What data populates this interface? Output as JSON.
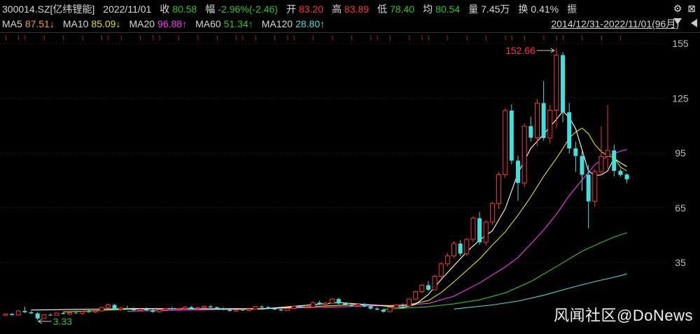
{
  "header": {
    "symbol": "300014.SZ[亿纬锂能]",
    "date": "2022/11/01",
    "close_label": "收",
    "close": "80.58",
    "change_label": "幅",
    "change": "-2.96%(-2.46)",
    "open_label": "开",
    "open": "83.20",
    "high_label": "高",
    "high": "83.89",
    "low_label": "低",
    "low": "78.40",
    "avg_label": "均",
    "avg": "80.54",
    "volume_label": "量",
    "volume": "7.45万",
    "turnover_label": "换",
    "turnover": "0.41%",
    "amp_label": "振",
    "settings_icon": "gear-icon",
    "close_icon": "close-icon"
  },
  "ma_bar": {
    "ma5_label": "MA5",
    "ma5": "87.51↓",
    "ma10_label": "MA10",
    "ma10": "85.09↓",
    "ma20_label": "MA20",
    "ma20": "96.88↑",
    "ma60_label": "MA60",
    "ma60": "51.34↑",
    "ma120_label": "MA120",
    "ma120": "28.80↑",
    "range": "2014/12/31-2022/11/01(96月)"
  },
  "colors": {
    "up": "#ff3333",
    "down": "#40e0e0",
    "ma5": "#ffffff",
    "ma10": "#e8e000",
    "ma20": "#ff33ff",
    "ma60": "#28c828",
    "ma120": "#40e0e0"
  },
  "chart_data": {
    "type": "candlestick",
    "period": "monthly",
    "ylim": [
      20,
      160
    ],
    "yticks": [
      35,
      65,
      95,
      125,
      155
    ],
    "max_label": "152.66",
    "min_label": "3.33",
    "candles": [
      [
        6.2,
        7.1,
        5.8,
        6.9
      ],
      [
        6.9,
        7.3,
        6.0,
        6.3
      ],
      [
        6.3,
        9.0,
        6.0,
        8.5
      ],
      [
        8.5,
        10.8,
        7.4,
        7.8
      ],
      [
        7.8,
        8.6,
        6.8,
        7.2
      ],
      [
        7.2,
        8.0,
        3.33,
        4.4
      ],
      [
        4.4,
        6.8,
        4.2,
        6.4
      ],
      [
        6.4,
        7.2,
        5.9,
        6.2
      ],
      [
        6.2,
        7.6,
        6.0,
        7.4
      ],
      [
        7.4,
        8.0,
        6.6,
        6.9
      ],
      [
        6.9,
        7.8,
        6.4,
        7.6
      ],
      [
        7.6,
        8.4,
        7.0,
        7.3
      ],
      [
        7.3,
        8.6,
        6.2,
        8.2
      ],
      [
        8.2,
        9.6,
        7.6,
        7.9
      ],
      [
        7.9,
        8.8,
        7.3,
        8.5
      ],
      [
        8.5,
        10.8,
        8.1,
        10.4
      ],
      [
        10.4,
        12.6,
        9.8,
        11.8
      ],
      [
        11.8,
        12.4,
        8.8,
        9.4
      ],
      [
        9.4,
        10.6,
        8.6,
        10.1
      ],
      [
        10.1,
        11.4,
        9.2,
        9.6
      ],
      [
        9.6,
        10.4,
        8.5,
        8.9
      ],
      [
        8.9,
        9.8,
        8.4,
        9.5
      ],
      [
        9.5,
        10.4,
        8.7,
        8.9
      ],
      [
        8.9,
        9.4,
        7.6,
        8.0
      ],
      [
        8.0,
        9.6,
        7.8,
        9.2
      ],
      [
        9.2,
        10.2,
        8.7,
        9.9
      ],
      [
        9.9,
        10.9,
        9.1,
        9.4
      ],
      [
        9.4,
        10.1,
        8.6,
        9.8
      ],
      [
        9.8,
        11.0,
        9.4,
        10.6
      ],
      [
        10.6,
        11.2,
        9.4,
        9.8
      ],
      [
        9.8,
        10.6,
        9.0,
        10.2
      ],
      [
        10.2,
        11.4,
        9.8,
        11.0
      ],
      [
        11.0,
        11.8,
        10.2,
        10.5
      ],
      [
        10.5,
        11.0,
        9.4,
        9.7
      ],
      [
        9.7,
        10.4,
        8.8,
        9.1
      ],
      [
        9.1,
        9.6,
        8.2,
        8.5
      ],
      [
        8.5,
        9.4,
        8.0,
        9.1
      ],
      [
        9.1,
        9.9,
        8.6,
        8.8
      ],
      [
        8.8,
        9.7,
        8.3,
        9.5
      ],
      [
        9.5,
        11.2,
        9.2,
        10.9
      ],
      [
        10.9,
        11.6,
        10.1,
        10.6
      ],
      [
        10.6,
        11.2,
        9.4,
        9.8
      ],
      [
        9.8,
        10.4,
        9.0,
        9.3
      ],
      [
        9.3,
        9.8,
        8.4,
        8.8
      ],
      [
        8.8,
        10.2,
        8.6,
        9.9
      ],
      [
        9.9,
        11.4,
        9.6,
        11.1
      ],
      [
        11.1,
        11.8,
        10.2,
        10.4
      ],
      [
        10.4,
        11.0,
        9.6,
        10.7
      ],
      [
        10.7,
        13.6,
        10.4,
        13.1
      ],
      [
        13.1,
        14.2,
        11.8,
        12.2
      ],
      [
        12.2,
        13.4,
        11.6,
        12.8
      ],
      [
        12.8,
        15.6,
        12.4,
        15.0
      ],
      [
        15.0,
        15.8,
        12.0,
        12.6
      ],
      [
        12.6,
        13.2,
        11.4,
        11.8
      ],
      [
        11.8,
        12.4,
        10.8,
        11.3
      ],
      [
        11.3,
        12.6,
        11.0,
        12.2
      ],
      [
        12.2,
        12.8,
        10.6,
        11.0
      ],
      [
        11.0,
        11.6,
        9.4,
        9.8
      ],
      [
        9.8,
        10.6,
        8.8,
        9.2
      ],
      [
        9.2,
        9.8,
        7.6,
        8.1
      ],
      [
        8.1,
        10.8,
        8.0,
        10.5
      ],
      [
        10.5,
        12.2,
        10.1,
        11.8
      ],
      [
        11.8,
        12.6,
        10.6,
        11.2
      ],
      [
        11.2,
        15.4,
        11.0,
        15.0
      ],
      [
        15.0,
        19.6,
        14.6,
        19.1
      ],
      [
        19.1,
        23.4,
        18.2,
        22.6
      ],
      [
        22.6,
        24.8,
        19.4,
        20.1
      ],
      [
        20.1,
        28.4,
        19.8,
        27.5
      ],
      [
        27.5,
        35.4,
        26.6,
        34.3
      ],
      [
        34.3,
        40.4,
        32.8,
        38.7
      ],
      [
        38.7,
        46.8,
        37.4,
        45.4
      ],
      [
        45.4,
        47.2,
        38.4,
        39.9
      ],
      [
        39.9,
        48.6,
        38.6,
        47.7
      ],
      [
        47.7,
        60.4,
        46.2,
        59.3
      ],
      [
        59.3,
        62.8,
        44.8,
        46.1
      ],
      [
        46.1,
        58.2,
        44.2,
        57.2
      ],
      [
        57.2,
        68.4,
        55.6,
        67.3
      ],
      [
        67.3,
        84.6,
        64.4,
        83.1
      ],
      [
        83.1,
        119.5,
        81.4,
        118.2
      ],
      [
        118.2,
        121.6,
        88.8,
        90.8
      ],
      [
        90.8,
        93.6,
        68.9,
        78.6
      ],
      [
        78.6,
        111.2,
        76.4,
        109.7
      ],
      [
        109.7,
        114.8,
        101.2,
        103.4
      ],
      [
        103.4,
        124.6,
        98.6,
        122.3
      ],
      [
        122.3,
        134.4,
        101.8,
        103.2
      ],
      [
        103.2,
        121.2,
        100.2,
        118.4
      ],
      [
        118.4,
        152.66,
        108.4,
        148.6
      ],
      [
        148.6,
        150.2,
        111.8,
        117.3
      ],
      [
        117.3,
        122.4,
        94.6,
        97.5
      ],
      [
        97.5,
        101.2,
        84.6,
        93.4
      ],
      [
        93.4,
        95.8,
        74.3,
        83.1
      ],
      [
        83.1,
        88.4,
        53.8,
        68.5
      ],
      [
        68.5,
        86.2,
        65.6,
        84.8
      ],
      [
        84.8,
        109.6,
        82.8,
        93.1
      ],
      [
        93.1,
        121.2,
        86.4,
        96.4
      ],
      [
        96.4,
        99.6,
        82.2,
        85.2
      ],
      [
        85.2,
        86.4,
        82.0,
        83.0
      ],
      [
        83.2,
        83.89,
        78.4,
        80.58
      ]
    ],
    "ma5": [
      [
        4,
        "9.0"
      ],
      [
        20,
        9.8
      ],
      [
        40,
        9.6
      ],
      [
        52,
        13.1
      ],
      [
        58,
        11.6
      ],
      [
        62,
        10.3
      ],
      [
        64,
        12.1
      ],
      [
        66,
        17.5
      ],
      [
        68,
        25.7
      ],
      [
        70,
        33.3
      ],
      [
        72,
        40.9
      ],
      [
        74,
        47.4
      ],
      [
        76,
        52.4
      ],
      [
        78,
        64.4
      ],
      [
        80,
        84.0
      ],
      [
        82,
        97.6
      ],
      [
        84,
        105.2
      ],
      [
        86,
        113.4
      ],
      [
        87,
        117.9
      ],
      [
        88,
        114.5
      ],
      [
        89,
        108.3
      ],
      [
        90,
        96.8
      ],
      [
        91,
        85.2
      ],
      [
        92,
        82.7
      ],
      [
        93,
        83.0
      ],
      [
        94,
        85.2
      ],
      [
        95,
        92.1
      ],
      [
        96,
        89.6
      ],
      [
        97,
        87.51
      ]
    ],
    "ma10": [
      [
        9,
        "8.0"
      ],
      [
        20,
        9.6
      ],
      [
        40,
        9.8
      ],
      [
        55,
        12.0
      ],
      [
        62,
        11.2
      ],
      [
        66,
        14.2
      ],
      [
        68,
        18.6
      ],
      [
        70,
        24.4
      ],
      [
        72,
        30.7
      ],
      [
        74,
        37.0
      ],
      [
        76,
        44.6
      ],
      [
        78,
        51.8
      ],
      [
        80,
        60.9
      ],
      [
        82,
        71.0
      ],
      [
        84,
        82.2
      ],
      [
        86,
        92.1
      ],
      [
        87,
        97.4
      ],
      [
        88,
        103.2
      ],
      [
        89,
        106.5
      ],
      [
        90,
        108.6
      ],
      [
        91,
        105.6
      ],
      [
        92,
        99.6
      ],
      [
        93,
        95.8
      ],
      [
        94,
        93.4
      ],
      [
        95,
        92.6
      ],
      [
        96,
        87.3
      ],
      [
        97,
        85.09
      ]
    ],
    "ma20": [
      [
        19,
        "8.4"
      ],
      [
        40,
        9.7
      ],
      [
        60,
        11.5
      ],
      [
        66,
        12.6
      ],
      [
        70,
        16.6
      ],
      [
        74,
        23.8
      ],
      [
        78,
        32.6
      ],
      [
        80,
        37.8
      ],
      [
        82,
        45.2
      ],
      [
        84,
        52.8
      ],
      [
        86,
        61.4
      ],
      [
        88,
        71.6
      ],
      [
        90,
        80.2
      ],
      [
        92,
        88.6
      ],
      [
        94,
        93.4
      ],
      [
        96,
        96.0
      ],
      [
        97,
        96.88
      ]
    ],
    "ma60": [
      [
        59,
        "9.4"
      ],
      [
        66,
        10.8
      ],
      [
        70,
        12.4
      ],
      [
        74,
        14.6
      ],
      [
        78,
        18.4
      ],
      [
        82,
        24.6
      ],
      [
        86,
        32.8
      ],
      [
        90,
        41.2
      ],
      [
        93,
        46.0
      ],
      [
        95,
        49.0
      ],
      [
        97,
        51.34
      ]
    ],
    "ma120": [
      [
        70,
        "9.6"
      ],
      [
        76,
        11.8
      ],
      [
        80,
        13.9
      ],
      [
        84,
        17.1
      ],
      [
        88,
        21.0
      ],
      [
        92,
        24.6
      ],
      [
        95,
        27.0
      ],
      [
        97,
        28.8
      ]
    ]
  },
  "watermark": "风闻社区@DoNews"
}
